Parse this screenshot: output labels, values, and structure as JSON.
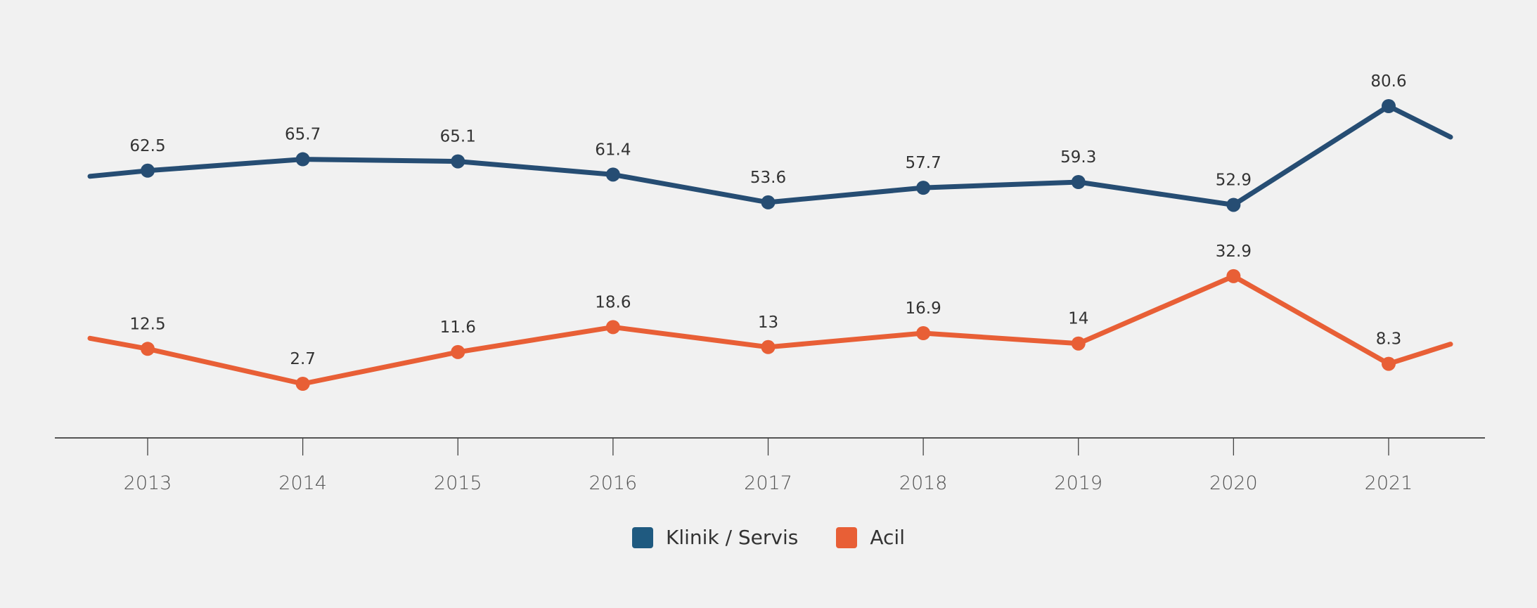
{
  "chart_data": {
    "type": "line",
    "title": "",
    "xlabel": "",
    "ylabel": "",
    "categories": [
      "2013",
      "2014",
      "2015",
      "2016",
      "2017",
      "2018",
      "2019",
      "2020",
      "2021"
    ],
    "series": [
      {
        "name": "Klinik / Servis",
        "color": "#264d73",
        "legend_color": "#1f5a80",
        "values": [
          62.5,
          65.7,
          65.1,
          61.4,
          53.6,
          57.7,
          59.3,
          52.9,
          80.6
        ],
        "labels": [
          "62.5",
          "65.7",
          "65.1",
          "61.4",
          "53.6",
          "57.7",
          "59.3",
          "52.9",
          "80.6"
        ]
      },
      {
        "name": "Acil",
        "color": "#e85f36",
        "legend_color": "#e85f36",
        "values": [
          12.5,
          2.7,
          11.6,
          18.6,
          13,
          16.9,
          14,
          32.9,
          8.3
        ],
        "labels": [
          "12.5",
          "2.7",
          "11.6",
          "18.6",
          "13",
          "16.9",
          "14",
          "32.9",
          "8.3"
        ]
      }
    ],
    "ylim": [
      -20,
      90
    ],
    "grid": false,
    "y_axis_visible": false,
    "legend_position": "bottom-center",
    "data_labels": true
  },
  "legend": {
    "items": [
      {
        "label": "Klinik / Servis",
        "color": "#1f5a80"
      },
      {
        "label": "Acil",
        "color": "#e85f36"
      }
    ]
  },
  "colors": {
    "background": "#f1f1f1",
    "axis": "#555555",
    "text": "#333333"
  }
}
